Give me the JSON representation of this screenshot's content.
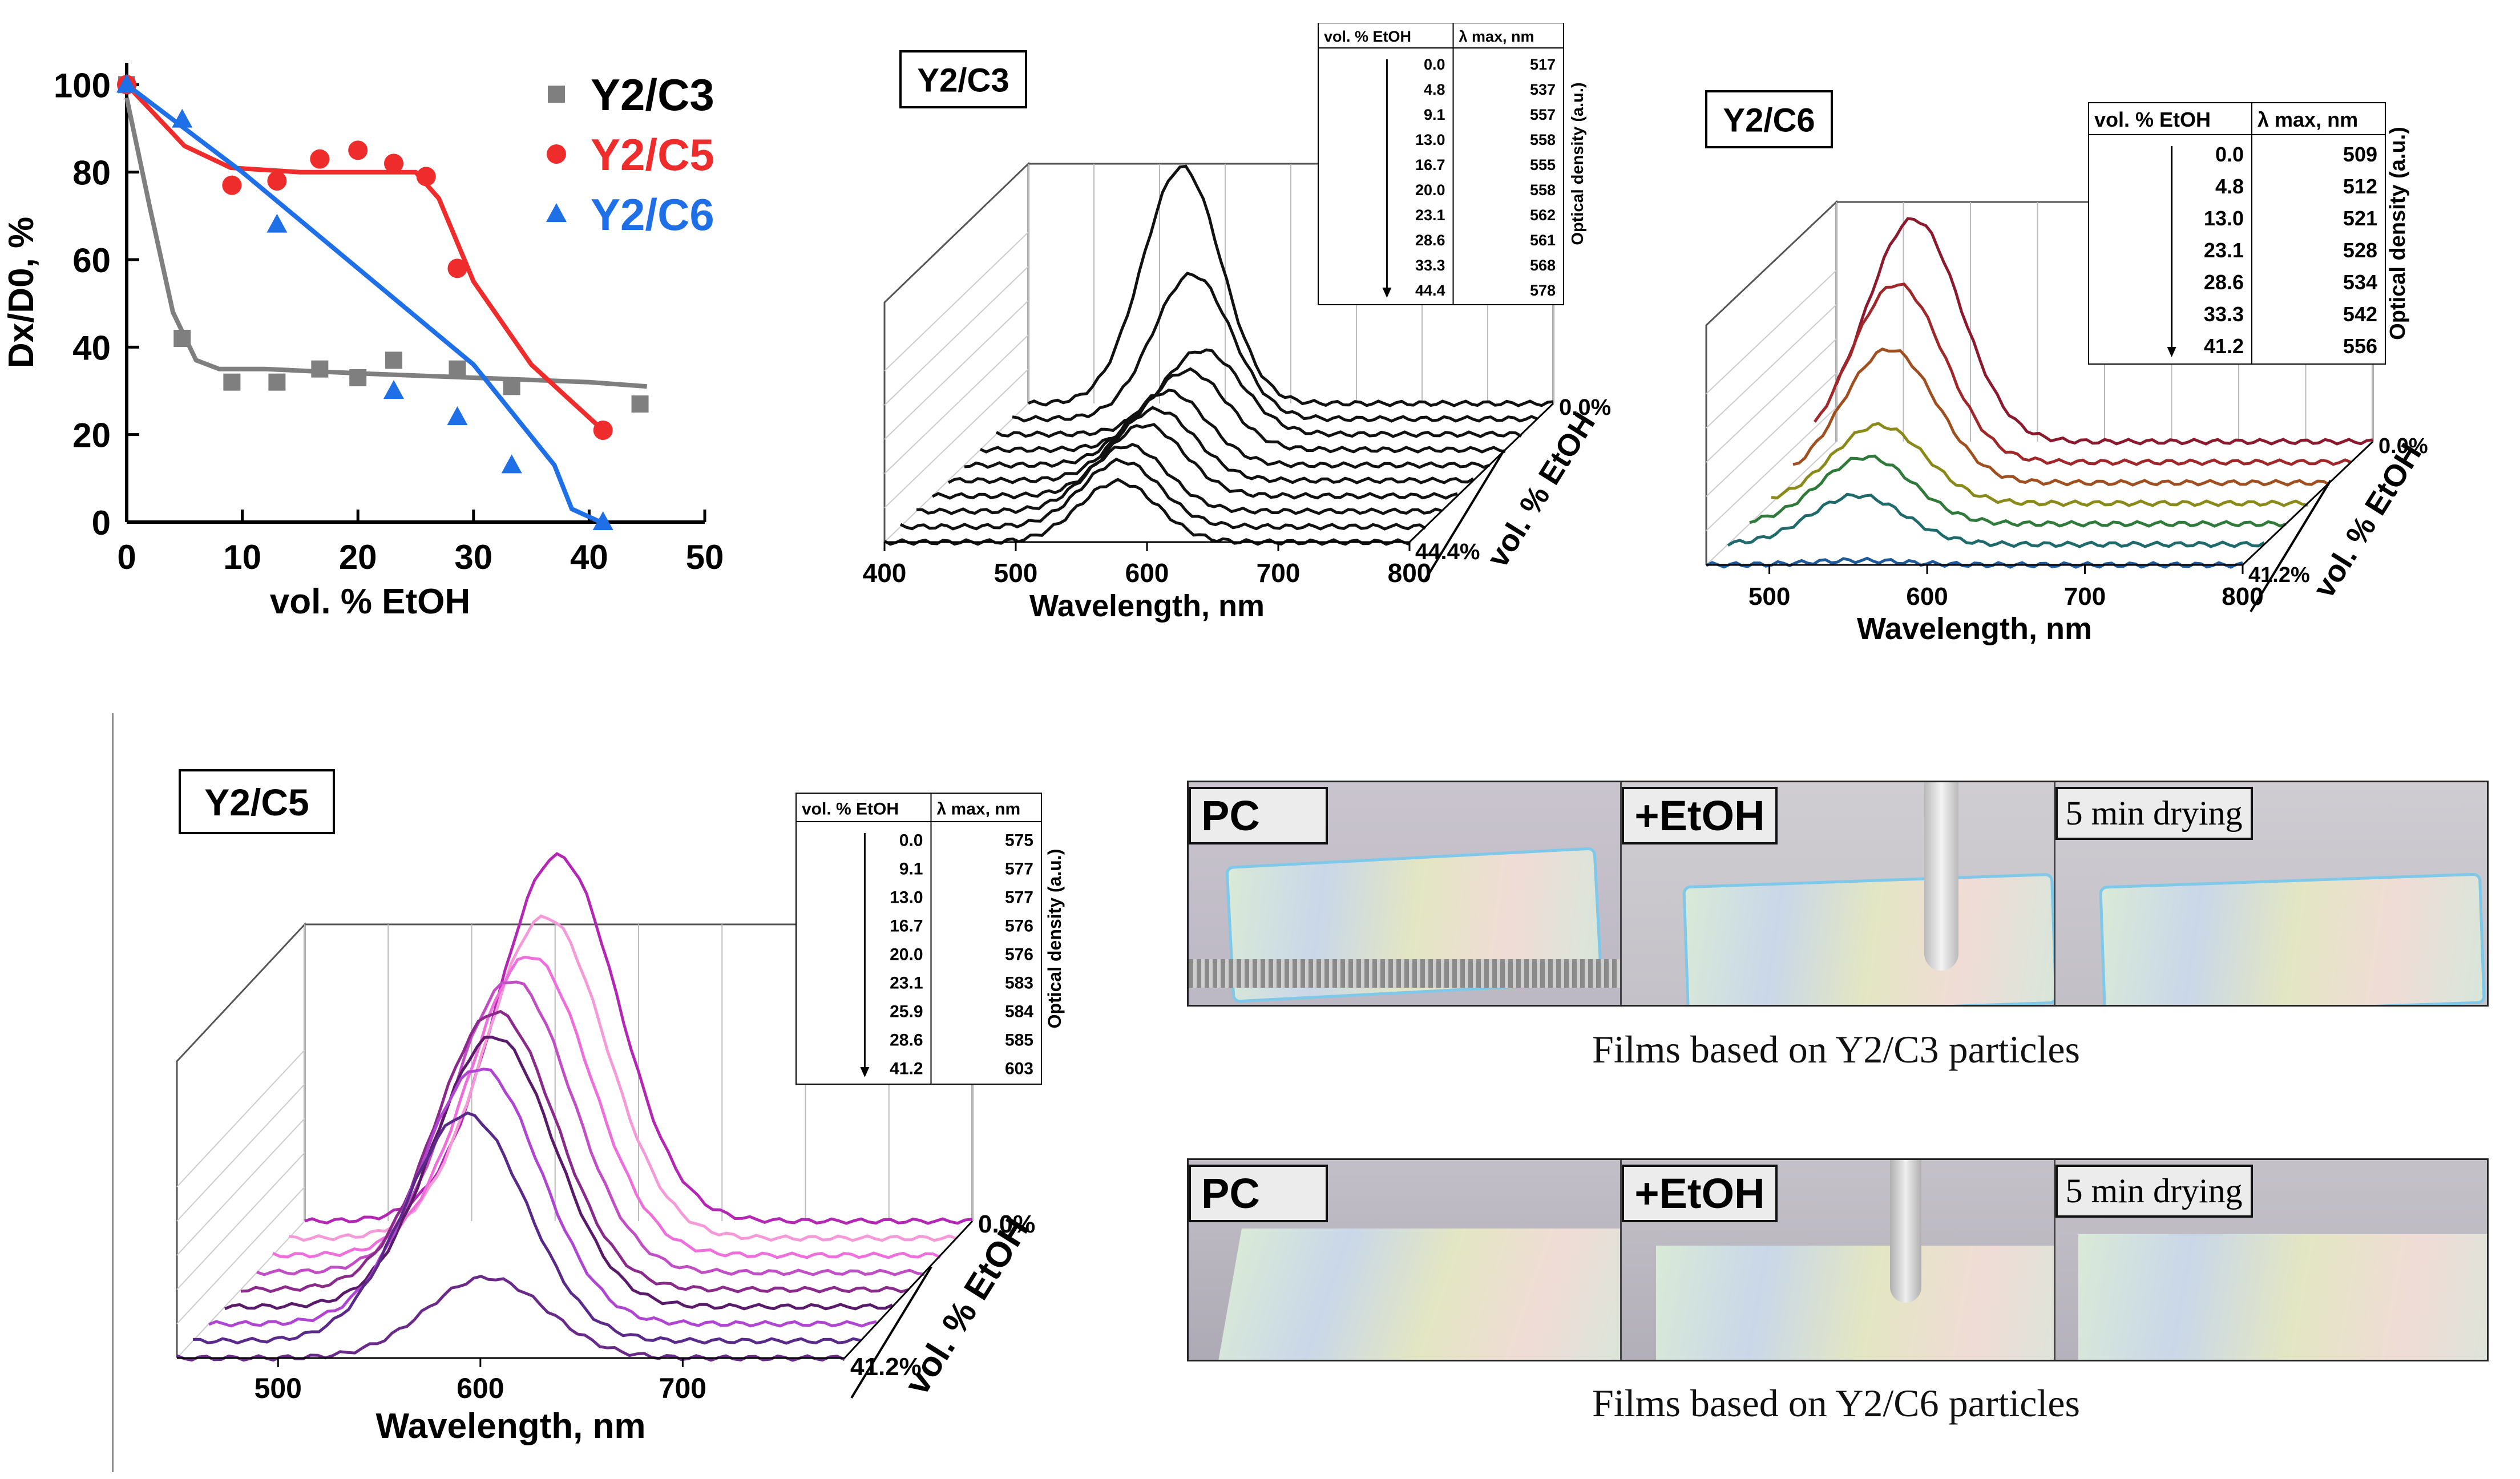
{
  "scatter": {
    "chart_data": {
      "type": "scatter",
      "ylabel": "Dx/D0, %",
      "xlabel": "vol. % EtOH",
      "xlim": [
        0,
        50
      ],
      "ylim": [
        0,
        105
      ],
      "x_ticks": [
        "0",
        "10",
        "20",
        "30",
        "40",
        "50"
      ],
      "y_ticks": [
        "0",
        "20",
        "40",
        "60",
        "80",
        "100"
      ],
      "series": [
        {
          "name": "Y2/C3",
          "color": "#7f7f7f",
          "marker": "square",
          "x": [
            0,
            4.8,
            9.1,
            13.0,
            16.7,
            20.0,
            23.1,
            28.6,
            33.3,
            44.4
          ],
          "y": [
            100,
            42,
            32,
            32,
            35,
            33,
            37,
            35,
            31,
            27
          ],
          "fit_x": [
            0,
            2,
            4,
            6,
            8,
            12,
            20,
            30,
            40,
            45
          ],
          "fit_y": [
            97,
            72,
            48,
            37,
            35,
            35,
            34,
            33,
            32,
            31
          ]
        },
        {
          "name": "Y2/C5",
          "color": "#ee2c2c",
          "marker": "circle",
          "x": [
            0,
            9.1,
            13.0,
            16.7,
            20.0,
            23.1,
            25.9,
            28.6,
            41.2
          ],
          "y": [
            100,
            77,
            78,
            83,
            85,
            82,
            79,
            58,
            21
          ],
          "fit_x": [
            0,
            5,
            9,
            15,
            20,
            25,
            27,
            30,
            35,
            41.2
          ],
          "fit_y": [
            100,
            86,
            81,
            80,
            80,
            80,
            74,
            55,
            36,
            21
          ]
        },
        {
          "name": "Y2/C6",
          "color": "#1f6fe6",
          "marker": "triangle",
          "x": [
            0,
            4.8,
            13.0,
            23.1,
            28.6,
            33.3,
            41.2
          ],
          "y": [
            100,
            92,
            68,
            30,
            24,
            13,
            0
          ],
          "fit_x": [
            0,
            10,
            20,
            30,
            37,
            38.5,
            41
          ],
          "fit_y": [
            100,
            80,
            58,
            36,
            13,
            3,
            0
          ]
        }
      ]
    }
  },
  "c3": {
    "chart_data": {
      "type": "line",
      "title": "Y2/C3",
      "xlabel": "Wavelength, nm",
      "zlabel": "Optical density (a.u.)",
      "depth_label": "vol. % EtOH",
      "depth_start": "0.0%",
      "depth_end": "44.4%",
      "x_ticks": [
        "400",
        "500",
        "600",
        "700",
        "800"
      ],
      "xlim": [
        400,
        800
      ],
      "table_headers": [
        "vol. % EtOH",
        "λ max, nm"
      ],
      "table_rows": [
        [
          "0.0",
          "517"
        ],
        [
          "4.8",
          "537"
        ],
        [
          "9.1",
          "557"
        ],
        [
          "13.0",
          "558"
        ],
        [
          "16.7",
          "555"
        ],
        [
          "20.0",
          "558"
        ],
        [
          "23.1",
          "562"
        ],
        [
          "28.6",
          "561"
        ],
        [
          "33.3",
          "568"
        ],
        [
          "44.4",
          "578"
        ]
      ],
      "peak_heights": [
        0.9,
        0.55,
        0.32,
        0.3,
        0.28,
        0.27,
        0.27,
        0.25,
        0.25,
        0.23
      ],
      "line_color": "#111111"
    }
  },
  "c6": {
    "chart_data": {
      "type": "line",
      "title": "Y2/C6",
      "xlabel": "Wavelength, nm",
      "zlabel": "Optical density (a.u.)",
      "depth_label": "vol. % EtOH",
      "depth_start": "0.0%",
      "depth_end": "41.2%",
      "x_ticks": [
        "500",
        "600",
        "700",
        "800"
      ],
      "xlim": [
        460,
        800
      ],
      "table_headers": [
        "vol. % EtOH",
        "λ max, nm"
      ],
      "table_rows": [
        [
          "0.0",
          "509"
        ],
        [
          "4.8",
          "512"
        ],
        [
          "13.0",
          "521"
        ],
        [
          "23.1",
          "528"
        ],
        [
          "28.6",
          "534"
        ],
        [
          "33.3",
          "542"
        ],
        [
          "41.2",
          "556"
        ]
      ],
      "peak_heights": [
        1.0,
        0.8,
        0.6,
        0.35,
        0.3,
        0.22,
        0.02
      ],
      "line_colors": [
        "#8b1a2e",
        "#a0282a",
        "#a05020",
        "#8a8a1a",
        "#2f7a3a",
        "#1f6a6a",
        "#1f5a9a"
      ]
    }
  },
  "c5": {
    "chart_data": {
      "type": "line",
      "title": "Y2/C5",
      "xlabel": "Wavelength, nm",
      "zlabel": "Optical density (a.u.)",
      "depth_label": "vol. % EtOH",
      "depth_start": "0.0%",
      "depth_end": "41.2%",
      "x_ticks": [
        "500",
        "600",
        "700"
      ],
      "xlim": [
        450,
        780
      ],
      "table_headers": [
        "vol. % EtOH",
        "λ max, nm"
      ],
      "table_rows": [
        [
          "0.0",
          "575"
        ],
        [
          "9.1",
          "577"
        ],
        [
          "13.0",
          "577"
        ],
        [
          "16.7",
          "576"
        ],
        [
          "20.0",
          "576"
        ],
        [
          "23.1",
          "583"
        ],
        [
          "25.9",
          "584"
        ],
        [
          "28.6",
          "585"
        ],
        [
          "41.2",
          "603"
        ]
      ],
      "peak_heights": [
        1.0,
        0.88,
        0.82,
        0.8,
        0.76,
        0.74,
        0.7,
        0.62,
        0.22
      ],
      "line_colors": [
        "#b426b4",
        "#f59ad8",
        "#ee6edc",
        "#c24ec6",
        "#8a2a8a",
        "#5a1a6a",
        "#b045d2",
        "#5a2a8a",
        "#6a2a8a"
      ]
    }
  },
  "photos": {
    "labels": [
      "PC",
      "+EtOH",
      "5 min drying"
    ],
    "caption_c3": "Films based on Y2/C3 particles",
    "caption_c6": "Films based on Y2/C6 particles"
  }
}
